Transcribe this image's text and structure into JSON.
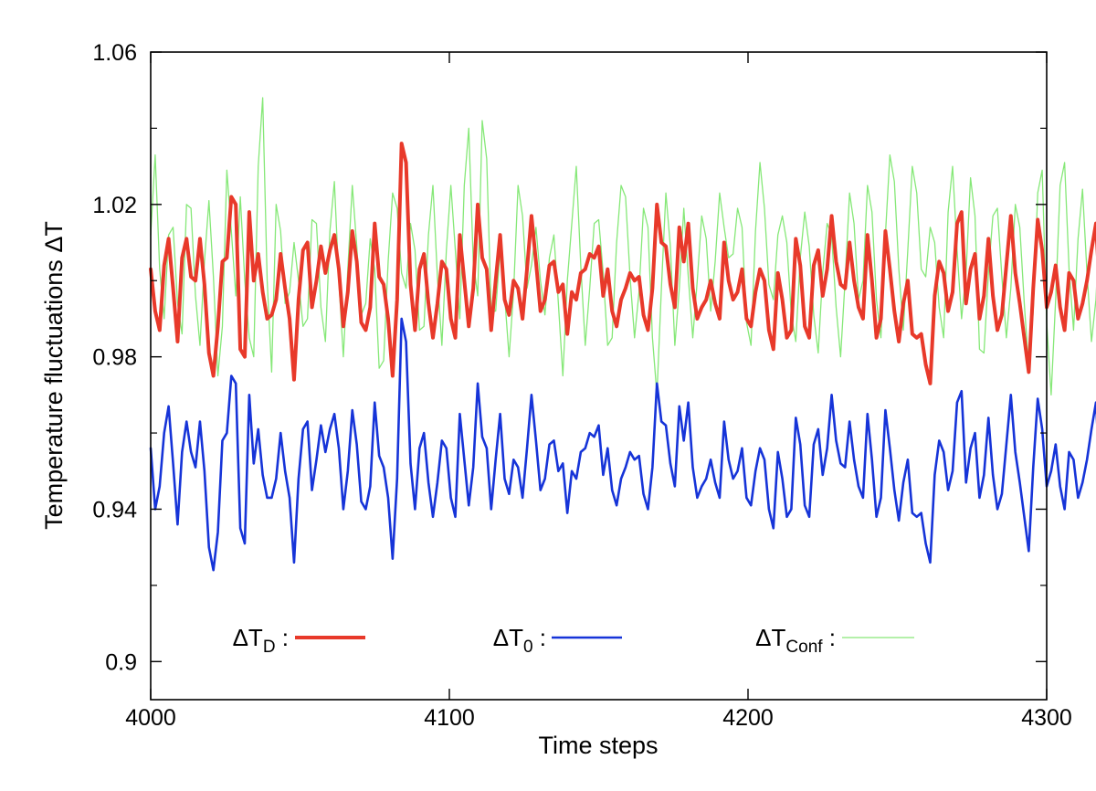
{
  "chart_data": {
    "type": "line",
    "xlabel": "Time steps",
    "ylabel": "Temperature  fluctuations ΔT",
    "xlim": [
      4000,
      4300
    ],
    "ylim": [
      0.89,
      1.06
    ],
    "x_ticks": [
      4000,
      4100,
      4200,
      4300
    ],
    "x_tick_labels": [
      "4000",
      "4100",
      "4200",
      "4300"
    ],
    "y_ticks": [
      0.9,
      0.94,
      0.98,
      1.02,
      1.06
    ],
    "y_tick_labels": [
      "0.9",
      "0.94",
      "0.98",
      "1.02",
      "1.06"
    ],
    "y_minor_ticks": [
      0.92,
      0.96,
      1.0,
      1.04
    ],
    "grid": false,
    "legend_position": "bottom, in one row inside the plot",
    "x_step": 1.5,
    "series": [
      {
        "legend_main": "ΔT",
        "legend_sub": "D",
        "legend_suffix": " :",
        "color": "#e8392a",
        "line_width": 4,
        "y": [
          1.003,
          0.992,
          0.987,
          1.004,
          1.011,
          0.998,
          0.984,
          1.006,
          1.011,
          1.001,
          1.0,
          1.011,
          0.999,
          0.981,
          0.975,
          0.988,
          1.005,
          1.006,
          1.022,
          1.02,
          0.982,
          0.98,
          1.018,
          1.0,
          1.007,
          0.997,
          0.99,
          0.991,
          0.995,
          1.007,
          0.998,
          0.99,
          0.974,
          0.995,
          1.008,
          1.01,
          0.993,
          1.0,
          1.009,
          1.002,
          1.008,
          1.012,
          1.003,
          0.988,
          0.997,
          1.013,
          1.005,
          0.989,
          0.987,
          0.993,
          1.015,
          1.001,
          0.999,
          0.99,
          0.975,
          0.995,
          1.036,
          1.031,
          0.999,
          0.987,
          1.003,
          1.007,
          0.994,
          0.985,
          0.994,
          1.005,
          1.003,
          0.99,
          0.985,
          1.012,
          1.0,
          0.988,
          0.998,
          1.02,
          1.006,
          1.003,
          0.987,
          1.0,
          1.012,
          0.995,
          0.991,
          1.0,
          0.998,
          0.99,
          1.003,
          1.017,
          1.005,
          0.992,
          0.995,
          1.004,
          1.005,
          0.997,
          0.999,
          0.986,
          0.997,
          0.995,
          1.002,
          1.003,
          1.007,
          1.006,
          1.009,
          0.996,
          1.003,
          0.992,
          0.988,
          0.995,
          0.998,
          1.002,
          1.0,
          1.001,
          0.991,
          0.987,
          0.998,
          1.02,
          1.01,
          1.009,
          0.999,
          0.993,
          1.014,
          1.005,
          1.015,
          0.998,
          0.99,
          0.993,
          0.995,
          1.0,
          0.994,
          0.99,
          1.01,
          1.0,
          0.995,
          0.997,
          1.003,
          0.99,
          0.988,
          0.997,
          1.003,
          1.0,
          0.987,
          0.982,
          1.002,
          0.995,
          0.985,
          0.987,
          1.011,
          1.004,
          0.988,
          0.985,
          1.004,
          1.008,
          0.996,
          1.003,
          1.017,
          1.005,
          0.999,
          0.998,
          1.01,
          1.0,
          0.993,
          0.99,
          1.012,
          1.0,
          0.985,
          0.99,
          1.013,
          1.003,
          0.992,
          0.984,
          0.994,
          1.0,
          0.986,
          0.985,
          0.986,
          0.978,
          0.973,
          0.996,
          1.005,
          1.002,
          0.992,
          0.997,
          1.015,
          1.018,
          0.994,
          1.003,
          1.007,
          0.99,
          0.996,
          1.011,
          0.996,
          0.987,
          0.991,
          1.004,
          1.017,
          1.002,
          0.994,
          0.985,
          0.976,
          0.998,
          1.016,
          1.008,
          0.993,
          0.997,
          1.004,
          0.993,
          0.987,
          1.002,
          1.0,
          0.99,
          0.994,
          1.0,
          1.008,
          1.015,
          0.994,
          0.991,
          1.003,
          0.99,
          0.982,
          0.998,
          1.015,
          1.0,
          1.003,
          0.998,
          1.001,
          1.003,
          1.002,
          1.001,
          1.0,
          1.002,
          1.001,
          1.0,
          0.999,
          1.008,
          0.999,
          0.996,
          0.99,
          1.002,
          0.998,
          0.99,
          1.01,
          1.0,
          0.987,
          1.0,
          1.004,
          0.997,
          0.99,
          0.995,
          1.011,
          0.999,
          0.995,
          1.021,
          1.028,
          0.985,
          0.973,
          0.986,
          0.984,
          0.999,
          1.001,
          1.015,
          1.02,
          1.003,
          0.983
        ]
      },
      {
        "legend_main": "ΔT",
        "legend_sub": "0",
        "legend_suffix": " :",
        "color": "#1634d8",
        "line_width": 2.6,
        "y": [
          0.956,
          0.94,
          0.946,
          0.96,
          0.967,
          0.952,
          0.936,
          0.955,
          0.963,
          0.955,
          0.951,
          0.963,
          0.95,
          0.93,
          0.924,
          0.934,
          0.958,
          0.96,
          0.975,
          0.973,
          0.935,
          0.931,
          0.97,
          0.952,
          0.961,
          0.949,
          0.943,
          0.943,
          0.948,
          0.96,
          0.95,
          0.943,
          0.926,
          0.948,
          0.961,
          0.963,
          0.945,
          0.953,
          0.962,
          0.955,
          0.961,
          0.965,
          0.956,
          0.94,
          0.95,
          0.966,
          0.957,
          0.942,
          0.94,
          0.946,
          0.968,
          0.954,
          0.951,
          0.943,
          0.927,
          0.948,
          0.99,
          0.984,
          0.952,
          0.94,
          0.956,
          0.96,
          0.947,
          0.938,
          0.947,
          0.958,
          0.956,
          0.943,
          0.938,
          0.965,
          0.953,
          0.941,
          0.951,
          0.973,
          0.959,
          0.956,
          0.94,
          0.953,
          0.965,
          0.948,
          0.944,
          0.953,
          0.951,
          0.943,
          0.956,
          0.97,
          0.958,
          0.945,
          0.948,
          0.957,
          0.958,
          0.95,
          0.952,
          0.939,
          0.95,
          0.948,
          0.955,
          0.956,
          0.96,
          0.959,
          0.962,
          0.949,
          0.956,
          0.945,
          0.941,
          0.948,
          0.951,
          0.955,
          0.953,
          0.954,
          0.944,
          0.94,
          0.951,
          0.973,
          0.963,
          0.962,
          0.952,
          0.946,
          0.967,
          0.958,
          0.968,
          0.951,
          0.943,
          0.946,
          0.948,
          0.953,
          0.947,
          0.943,
          0.963,
          0.953,
          0.948,
          0.95,
          0.956,
          0.943,
          0.941,
          0.95,
          0.956,
          0.953,
          0.94,
          0.935,
          0.955,
          0.948,
          0.938,
          0.94,
          0.964,
          0.957,
          0.941,
          0.938,
          0.957,
          0.961,
          0.949,
          0.956,
          0.97,
          0.958,
          0.952,
          0.951,
          0.963,
          0.953,
          0.946,
          0.943,
          0.965,
          0.953,
          0.938,
          0.943,
          0.966,
          0.956,
          0.945,
          0.937,
          0.947,
          0.953,
          0.939,
          0.938,
          0.939,
          0.931,
          0.926,
          0.949,
          0.958,
          0.955,
          0.945,
          0.95,
          0.968,
          0.971,
          0.947,
          0.956,
          0.96,
          0.943,
          0.949,
          0.964,
          0.949,
          0.94,
          0.944,
          0.957,
          0.97,
          0.955,
          0.947,
          0.938,
          0.929,
          0.951,
          0.969,
          0.961,
          0.946,
          0.95,
          0.957,
          0.946,
          0.94,
          0.955,
          0.953,
          0.943,
          0.947,
          0.953,
          0.961,
          0.968,
          0.947,
          0.944,
          0.956,
          0.943,
          0.935,
          0.951,
          0.968,
          0.953,
          0.956,
          0.951,
          0.954,
          0.956,
          0.955,
          0.954,
          0.953,
          0.955,
          0.954,
          0.953,
          0.952,
          0.961,
          0.952,
          0.949,
          0.943,
          0.955,
          0.951,
          0.943,
          0.963,
          0.953,
          0.94,
          0.953,
          0.957,
          0.95,
          0.943,
          0.948,
          0.964,
          0.952,
          0.948,
          0.974,
          0.985,
          0.938,
          0.923,
          0.937,
          0.945,
          0.94,
          0.954,
          0.968,
          0.975,
          0.956,
          0.935
        ]
      },
      {
        "legend_main": "ΔT",
        "legend_sub": "Conf",
        "legend_suffix": " :",
        "color": "#86e878",
        "line_width": 1.3,
        "y": [
          1.012,
          1.033,
          1.003,
          0.99,
          1.012,
          1.014,
          0.994,
          0.986,
          1.02,
          1.019,
          0.996,
          0.983,
          1.005,
          1.021,
          1.001,
          0.975,
          0.988,
          1.029,
          1.013,
          0.996,
          1.022,
          1.0,
          0.985,
          0.98,
          1.03,
          1.048,
          1.0,
          0.976,
          1.02,
          1.013,
          0.994,
          0.997,
          1.01,
          1.0,
          0.988,
          0.99,
          1.016,
          1.015,
          0.993,
          0.984,
          1.013,
          1.026,
          1.0,
          0.98,
          1.003,
          1.025,
          1.009,
          0.991,
          0.994,
          1.011,
          1.003,
          0.977,
          0.979,
          1.005,
          1.023,
          1.019,
          1.002,
          0.998,
          1.015,
          1.008,
          0.987,
          0.988,
          1.012,
          1.025,
          1.001,
          0.983,
          1.008,
          1.025,
          1.008,
          0.99,
          1.025,
          1.04,
          1.005,
          0.996,
          1.042,
          1.032,
          0.992,
          0.992,
          1.008,
          0.996,
          0.98,
          0.997,
          1.025,
          1.017,
          0.998,
          1.004,
          1.014,
          1.0,
          0.991,
          1.006,
          1.012,
          0.994,
          0.975,
          1.0,
          1.015,
          1.03,
          1.004,
          0.983,
          0.998,
          1.015,
          1.016,
          1.002,
          0.983,
          0.985,
          1.01,
          1.025,
          1.022,
          1.001,
          0.985,
          0.997,
          1.019,
          1.014,
          0.985,
          0.97,
          0.998,
          1.023,
          1.009,
          0.983,
          0.998,
          1.019,
          1.001,
          0.985,
          1.0,
          1.017,
          1.011,
          0.992,
          1.005,
          1.023,
          1.014,
          1.006,
          1.007,
          1.019,
          1.014,
          0.989,
          0.983,
          1.013,
          1.031,
          1.019,
          0.999,
          0.995,
          1.012,
          1.017,
          1.01,
          0.991,
          0.984,
          1.006,
          1.018,
          1.009,
          0.991,
          0.981,
          1.002,
          1.015,
          1.012,
          0.993,
          0.98,
          1.0,
          1.023,
          1.015,
          0.995,
          1.0,
          1.025,
          1.018,
          0.995,
          0.985,
          1.012,
          1.033,
          1.026,
          1.003,
          0.987,
          1.008,
          1.03,
          1.023,
          1.003,
          1.001,
          1.014,
          1.01,
          0.993,
          0.985,
          1.018,
          1.03,
          1.008,
          0.99,
          1.002,
          1.027,
          1.017,
          0.982,
          0.981,
          1.002,
          1.017,
          1.019,
          1.001,
          0.985,
          0.998,
          1.02,
          1.014,
          0.994,
          0.977,
          0.992,
          1.023,
          1.029,
          0.989,
          0.97,
          0.995,
          1.025,
          1.031,
          1.003,
          0.987,
          1.011,
          1.024,
          1.002,
          0.984,
          0.995,
          1.019,
          1.021,
          0.995,
          0.98,
          1.0,
          1.028,
          1.031,
          1.005,
          0.988,
          1.003,
          1.016,
          1.005,
          0.99,
          0.994,
          1.011,
          1.007,
          0.99,
          0.993,
          1.021,
          1.027,
          1.001,
          0.982,
          1.001,
          1.024,
          1.015,
          0.995,
          0.987,
          1.008,
          1.024,
          1.01,
          0.991,
          1.001,
          1.026,
          1.013,
          0.992,
          1.005,
          1.019,
          1.01,
          0.981,
          0.987,
          1.024,
          1.035,
          1.007,
          0.979,
          0.963,
          1.021,
          1.055,
          1.027,
          0.985,
          0.997,
          1.03,
          1.005,
          0.991,
          1.017,
          1.047,
          1.039
        ]
      }
    ]
  }
}
